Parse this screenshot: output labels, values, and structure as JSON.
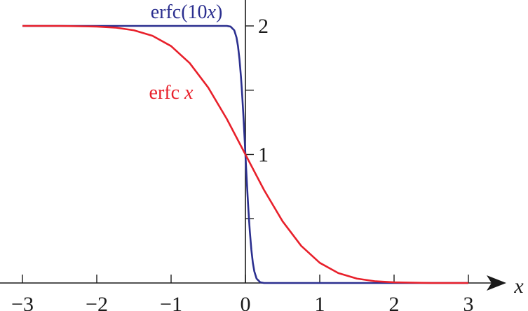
{
  "chart_data": {
    "type": "line",
    "title": "",
    "xlabel": "x",
    "ylabel": "",
    "xlim": [
      -3.0,
      3.0
    ],
    "ylim": [
      0,
      2.2
    ],
    "x_ticks": [
      -3,
      -2,
      -1,
      0,
      1,
      2,
      3
    ],
    "x_tick_labels": [
      "−3",
      "−2",
      "−1",
      "0",
      "1",
      "2",
      "3"
    ],
    "y_ticks": [
      0.5,
      1,
      1.5,
      2
    ],
    "y_tick_labels": [
      "",
      "1",
      "",
      "2"
    ],
    "grid": false,
    "legend": "none",
    "series": [
      {
        "name": "erfc(10x)",
        "label_parts": [
          [
            "erfc(10",
            false
          ],
          [
            "x",
            true
          ],
          [
            ")",
            false
          ]
        ],
        "color": "#2b2f8f",
        "x": [
          -3.0,
          -0.3,
          -0.25,
          -0.2,
          -0.15,
          -0.12,
          -0.1,
          -0.08,
          -0.06,
          -0.05,
          -0.04,
          -0.03,
          -0.02,
          -0.01,
          0.0,
          0.01,
          0.02,
          0.03,
          0.04,
          0.05,
          0.06,
          0.08,
          0.1,
          0.12,
          0.15,
          0.2,
          0.25,
          0.3,
          3.0
        ],
        "values": [
          2.0,
          2.0,
          2.0,
          1.995,
          1.966,
          1.91,
          1.843,
          1.742,
          1.604,
          1.52,
          1.428,
          1.329,
          1.223,
          1.112,
          1.0,
          0.888,
          0.777,
          0.671,
          0.572,
          0.48,
          0.396,
          0.258,
          0.157,
          0.09,
          0.034,
          0.005,
          0.0,
          0.0,
          0.0
        ]
      },
      {
        "name": "erfc x",
        "label_parts": [
          [
            "erfc ",
            false
          ],
          [
            "x",
            true
          ]
        ],
        "color": "#e8202b",
        "x": [
          -3.0,
          -2.5,
          -2.0,
          -1.75,
          -1.5,
          -1.25,
          -1.0,
          -0.75,
          -0.5,
          -0.25,
          0.0,
          0.25,
          0.5,
          0.75,
          1.0,
          1.25,
          1.5,
          1.75,
          2.0,
          2.5,
          3.0
        ],
        "values": [
          2.0,
          2.0,
          1.995,
          1.987,
          1.966,
          1.923,
          1.843,
          1.711,
          1.52,
          1.276,
          1.0,
          0.724,
          0.48,
          0.289,
          0.157,
          0.077,
          0.034,
          0.013,
          0.005,
          0.0,
          0.0
        ]
      }
    ]
  }
}
